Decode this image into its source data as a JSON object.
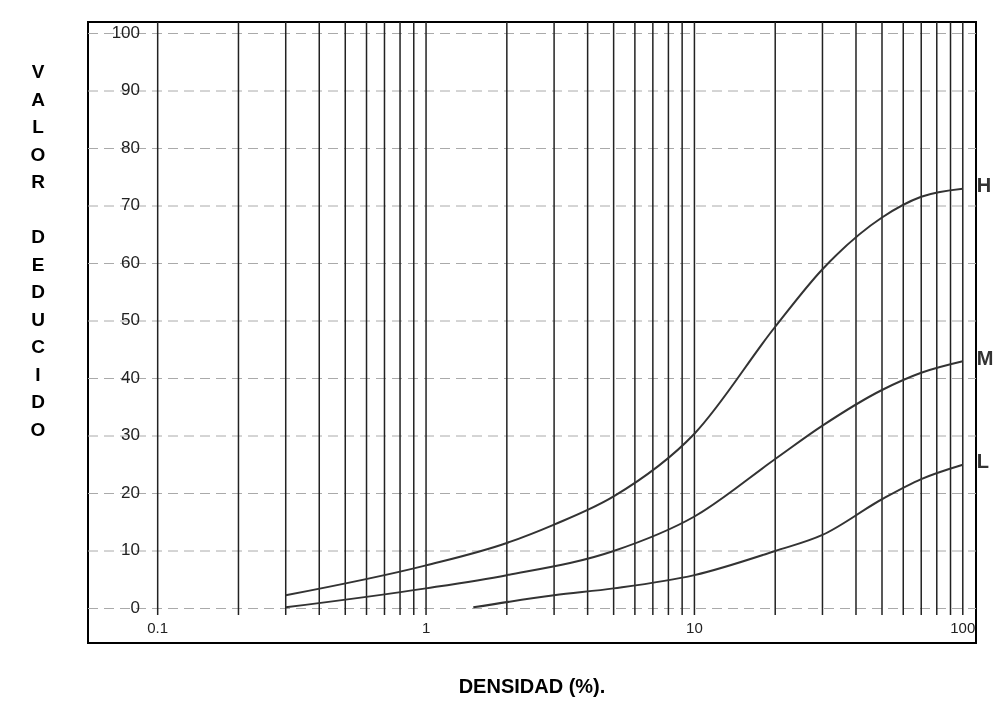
{
  "chart_data": {
    "type": "line",
    "xlabel": "DENSIDAD (%).",
    "ylabel": "VALOR DEDUCIDO",
    "log": "x",
    "grid": true,
    "xlim": [
      0.055,
      112
    ],
    "ylim": [
      -6,
      102
    ],
    "xticks": [
      0.1,
      {
        "value": 0.2,
        "label": null
      },
      {
        "value": 0.3,
        "label": null
      },
      {
        "value": 0.4,
        "label": null
      },
      {
        "value": 0.5,
        "label": null
      },
      {
        "value": 0.6,
        "label": null
      },
      {
        "value": 0.7,
        "label": null
      },
      {
        "value": 0.8,
        "label": null
      },
      {
        "value": 0.9,
        "label": null
      },
      1,
      {
        "value": 2,
        "label": null
      },
      {
        "value": 3,
        "label": null
      },
      {
        "value": 4,
        "label": null
      },
      {
        "value": 5,
        "label": null
      },
      {
        "value": 6,
        "label": null
      },
      {
        "value": 7,
        "label": null
      },
      {
        "value": 8,
        "label": null
      },
      {
        "value": 9,
        "label": null
      },
      10,
      {
        "value": 20,
        "label": null
      },
      {
        "value": 30,
        "label": null
      },
      {
        "value": 40,
        "label": null
      },
      {
        "value": 50,
        "label": null
      },
      {
        "value": 60,
        "label": null
      },
      {
        "value": 70,
        "label": null
      },
      {
        "value": 80,
        "label": null
      },
      {
        "value": 90,
        "label": null
      },
      100
    ],
    "yticks": [
      0,
      10,
      20,
      30,
      40,
      50,
      60,
      70,
      80,
      90,
      100
    ],
    "series": [
      {
        "name": "H",
        "color": "#333333",
        "x": [
          0.3,
          1,
          2,
          3,
          5,
          10,
          20,
          30,
          50,
          70,
          100
        ],
        "values": [
          2.3,
          7.5,
          11.4,
          14.6,
          19.5,
          30.4,
          49,
          59,
          68,
          71.6,
          73
        ]
      },
      {
        "name": "M",
        "color": "#333333",
        "x": [
          0.3,
          1,
          2,
          5,
          10,
          20,
          30,
          50,
          70,
          100
        ],
        "values": [
          0.2,
          3.5,
          5.8,
          10,
          16,
          26,
          31.8,
          38,
          41,
          43
        ]
      },
      {
        "name": "L",
        "color": "#333333",
        "x": [
          1.5,
          3,
          5,
          10,
          20,
          30,
          50,
          70,
          100
        ],
        "values": [
          0.2,
          2.3,
          3.5,
          5.8,
          10,
          12.8,
          19,
          22.5,
          25
        ]
      }
    ]
  }
}
